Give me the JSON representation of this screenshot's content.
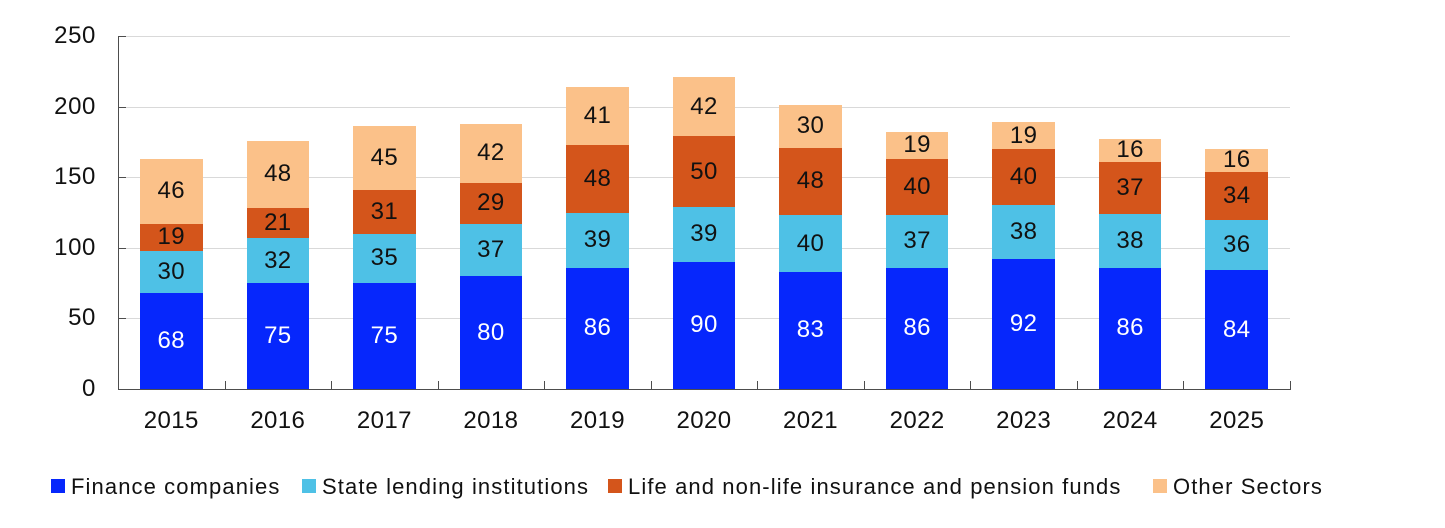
{
  "chart_data": {
    "type": "bar",
    "stacked": true,
    "title": "",
    "xlabel": "",
    "ylabel": "",
    "categories": [
      "2015",
      "2016",
      "2017",
      "2018",
      "2019",
      "2020",
      "2021",
      "2022",
      "2023",
      "2024",
      "2025"
    ],
    "series": [
      {
        "name": "Finance companies",
        "color": "#0627fc",
        "label_color": "#ffffff",
        "values": [
          68,
          75,
          75,
          80,
          86,
          90,
          83,
          86,
          92,
          86,
          84
        ]
      },
      {
        "name": "State lending institutions",
        "color": "#4ec1e6",
        "label_color": "#111111",
        "values": [
          30,
          32,
          35,
          37,
          39,
          39,
          40,
          37,
          38,
          38,
          36
        ]
      },
      {
        "name": "Life and non-life insurance and pension funds",
        "color": "#d4551b",
        "label_color": "#111111",
        "values": [
          19,
          21,
          31,
          29,
          48,
          50,
          48,
          40,
          40,
          37,
          34
        ]
      },
      {
        "name": "Other Sectors",
        "color": "#fbc189",
        "label_color": "#111111",
        "values": [
          46,
          48,
          45,
          42,
          41,
          42,
          30,
          19,
          19,
          16,
          16
        ]
      }
    ],
    "ylim": [
      0,
      250
    ],
    "yticks": [
      0,
      50,
      100,
      150,
      200,
      250
    ],
    "grid": true,
    "legend_position": "bottom",
    "axis_color": "#4d4d4d",
    "gridline_color": "#d9d9d9"
  }
}
